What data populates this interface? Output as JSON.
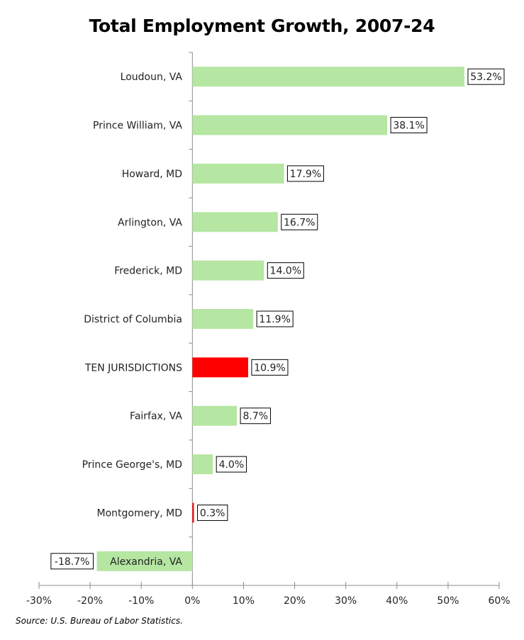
{
  "chart_data": {
    "type": "bar",
    "orientation": "horizontal",
    "title": "Total Employment Growth, 2007-24",
    "categories": [
      "Loudoun, VA",
      "Prince William, VA",
      "Howard, MD",
      "Arlington, VA",
      "Frederick, MD",
      "District of Columbia",
      "TEN JURISDICTIONS",
      "Fairfax, VA",
      "Prince George's, MD",
      "Montgomery, MD",
      "Alexandria, VA"
    ],
    "values": [
      53.2,
      38.1,
      17.9,
      16.7,
      14.0,
      11.9,
      10.9,
      8.7,
      4.0,
      0.3,
      -18.7
    ],
    "data_labels": [
      "53.2%",
      "38.1%",
      "17.9%",
      "16.7%",
      "14.0%",
      "11.9%",
      "10.9%",
      "8.7%",
      "4.0%",
      "0.3%",
      "-18.7%"
    ],
    "highlighted": [
      "TEN JURISDICTIONS",
      "Montgomery, MD"
    ],
    "xlim": [
      -30,
      60
    ],
    "xticks": [
      -30,
      -20,
      -10,
      0,
      10,
      20,
      30,
      40,
      50,
      60
    ],
    "xtick_labels": [
      "-30%",
      "-20%",
      "-10%",
      "0%",
      "10%",
      "20%",
      "30%",
      "40%",
      "50%",
      "60%"
    ],
    "xlabel": "",
    "ylabel": "",
    "grid": false,
    "legend": "none",
    "colors": {
      "default": "#b5e6a2",
      "highlight": "#ff0000",
      "axis": "#8c8c8c"
    }
  },
  "source": "Source: U.S. Bureau of Labor Statistics."
}
